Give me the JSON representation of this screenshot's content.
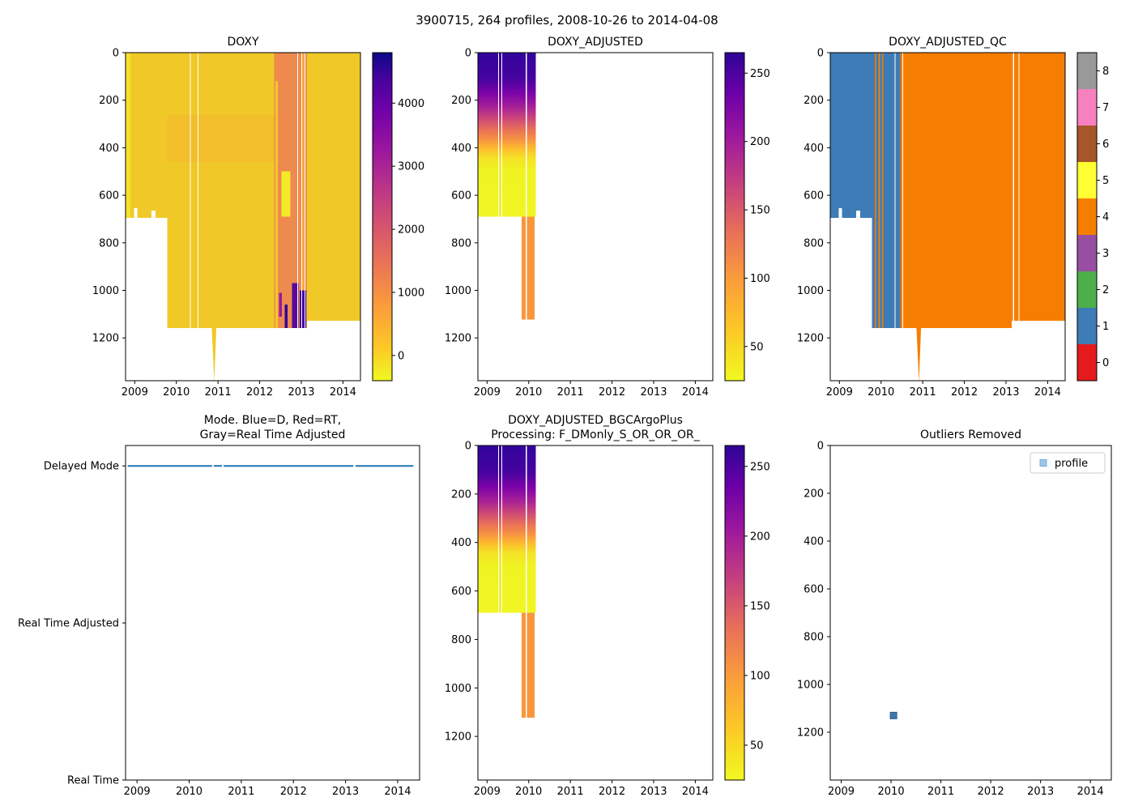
{
  "figure_title": "3900715, 264 profiles, 2008-10-26 to 2014-04-08",
  "colors": {
    "mode_line": "#1f77b4",
    "qc_blue": "#3e7cb8",
    "qc_orange": "#f57e00",
    "heat_gold": "#f0c929"
  },
  "chart_data": [
    {
      "id": "doxy",
      "type": "heatmap",
      "title": "DOXY",
      "x_range": [
        2008.78,
        2014.42
      ],
      "y_range": [
        0,
        1380
      ],
      "x_ticks": [
        2009,
        2010,
        2011,
        2012,
        2013,
        2014
      ],
      "y_ticks": [
        0,
        200,
        400,
        600,
        800,
        1000,
        1200
      ],
      "colorbar": {
        "kind": "gradient",
        "range": [
          -400,
          4800
        ],
        "ticks": [
          0,
          1000,
          2000,
          3000,
          4000
        ],
        "stops": [
          [
            0,
            "#f0f921"
          ],
          [
            0.1,
            "#fdc926"
          ],
          [
            0.22,
            "#fb9f3a"
          ],
          [
            0.34,
            "#ed7953"
          ],
          [
            0.46,
            "#d8576b"
          ],
          [
            0.58,
            "#bd3786"
          ],
          [
            0.7,
            "#9c179e"
          ],
          [
            0.82,
            "#7201a8"
          ],
          [
            0.92,
            "#46039f"
          ],
          [
            1,
            "#0d0887"
          ]
        ]
      },
      "regions": [
        {
          "type": "rect",
          "x": [
            2008.78,
            2009.78
          ],
          "y": [
            0,
            695
          ],
          "color": "#f0c929"
        },
        {
          "type": "rect",
          "x": [
            2008.78,
            2008.9
          ],
          "y": [
            0,
            695
          ],
          "color": "#f3e32b"
        },
        {
          "type": "rect",
          "x": [
            2009.78,
            2013.14
          ],
          "y": [
            0,
            1158
          ],
          "color": "#f0c929"
        },
        {
          "type": "rect",
          "x": [
            2009.78,
            2012.35
          ],
          "y": [
            260,
            460
          ],
          "color": "#f2be2a"
        },
        {
          "type": "rect",
          "x": [
            2013.14,
            2014.42
          ],
          "y": [
            0,
            1128
          ],
          "color": "#f0c929"
        },
        {
          "type": "polygon",
          "points": [
            [
              2010.85,
              1158
            ],
            [
              2010.91,
              1385
            ],
            [
              2010.96,
              1158
            ]
          ],
          "color": "#f0c929"
        },
        {
          "type": "rect",
          "x": [
            2012.35,
            2013.14
          ],
          "y": [
            0,
            1158
          ],
          "color": "#ee8a4d"
        },
        {
          "type": "rect",
          "x": [
            2012.38,
            2012.44
          ],
          "y": [
            120,
            1158
          ],
          "color": "#f0c929"
        },
        {
          "type": "rect",
          "x": [
            2012.52,
            2012.74
          ],
          "y": [
            500,
            690
          ],
          "color": "#f2ea28"
        },
        {
          "type": "rect",
          "x": [
            2012.47,
            2012.53
          ],
          "y": [
            1010,
            1110
          ],
          "color": "#9c179e"
        },
        {
          "type": "rect",
          "x": [
            2012.6,
            2012.67
          ],
          "y": [
            1060,
            1158
          ],
          "color": "#2f049a"
        },
        {
          "type": "rect",
          "x": [
            2012.78,
            2012.93
          ],
          "y": [
            970,
            1158
          ],
          "color": "#56089f"
        },
        {
          "type": "rect",
          "x": [
            2012.96,
            2013.12
          ],
          "y": [
            1000,
            1158
          ],
          "color": "#3a049b"
        },
        {
          "type": "rect",
          "x": [
            2013.02,
            2013.09
          ],
          "y": [
            0,
            1000
          ],
          "color": "#f2a93c"
        },
        {
          "type": "rect",
          "x": [
            2008.98,
            2009.06
          ],
          "y": [
            655,
            695
          ],
          "color": "#ffffff"
        },
        {
          "type": "rect",
          "x": [
            2009.4,
            2009.5
          ],
          "y": [
            665,
            695
          ],
          "color": "#ffffff"
        },
        {
          "type": "rect",
          "x": [
            2010.325,
            2010.345
          ],
          "y": [
            0,
            1158
          ],
          "color": "#ffffff"
        },
        {
          "type": "rect",
          "x": [
            2010.51,
            2010.53
          ],
          "y": [
            0,
            1158
          ],
          "color": "#ffffff"
        },
        {
          "type": "rect",
          "x": [
            2012.9,
            2012.92
          ],
          "y": [
            0,
            1158
          ],
          "color": "#ffffff"
        },
        {
          "type": "rect",
          "x": [
            2013.0,
            2013.02
          ],
          "y": [
            0,
            1158
          ],
          "color": "#ffffff"
        },
        {
          "type": "rect",
          "x": [
            2013.08,
            2013.1
          ],
          "y": [
            0,
            1158
          ],
          "color": "#ffffff"
        }
      ]
    },
    {
      "id": "doxy_adjusted",
      "type": "heatmap",
      "title": "DOXY_ADJUSTED",
      "x_range": [
        2008.78,
        2014.42
      ],
      "y_range": [
        0,
        1380
      ],
      "x_ticks": [
        2009,
        2010,
        2011,
        2012,
        2013,
        2014
      ],
      "y_ticks": [
        0,
        200,
        400,
        600,
        800,
        1000,
        1200
      ],
      "colorbar": {
        "kind": "gradient",
        "range": [
          25,
          265
        ],
        "ticks": [
          50,
          100,
          150,
          200,
          250
        ],
        "stops": [
          [
            0,
            "#f0f921"
          ],
          [
            0.15,
            "#fdc926"
          ],
          [
            0.3,
            "#fb9f3a"
          ],
          [
            0.45,
            "#e97158"
          ],
          [
            0.6,
            "#c5407e"
          ],
          [
            0.75,
            "#9c179e"
          ],
          [
            0.88,
            "#6a00a8"
          ],
          [
            1,
            "#2d0594"
          ]
        ]
      },
      "regions": [
        {
          "type": "vgradient",
          "x": [
            2008.78,
            2010.17
          ],
          "y": [
            0,
            690
          ],
          "stops": [
            [
              0,
              "#31049c"
            ],
            [
              0.16,
              "#46039f"
            ],
            [
              0.25,
              "#7e03a8"
            ],
            [
              0.33,
              "#a62098"
            ],
            [
              0.4,
              "#cc4778"
            ],
            [
              0.47,
              "#e97158"
            ],
            [
              0.53,
              "#f79342"
            ],
            [
              0.58,
              "#fdb92e"
            ],
            [
              0.64,
              "#f4e126"
            ],
            [
              0.72,
              "#f0f322"
            ],
            [
              1,
              "#f0f524"
            ]
          ]
        },
        {
          "type": "rect",
          "x": [
            2009.83,
            2009.925
          ],
          "y": [
            690,
            1122
          ],
          "color": "#f9963c"
        },
        {
          "type": "rect",
          "x": [
            2009.955,
            2010.14
          ],
          "y": [
            690,
            1122
          ],
          "color": "#f9963c"
        },
        {
          "type": "rect",
          "x": [
            2009.925,
            2009.955
          ],
          "y": [
            0,
            1122
          ],
          "color": "#ffffff"
        },
        {
          "type": "rect",
          "x": [
            2009.27,
            2009.29
          ],
          "y": [
            0,
            690
          ],
          "color": "#ffffff"
        },
        {
          "type": "rect",
          "x": [
            2009.34,
            2009.36
          ],
          "y": [
            0,
            690
          ],
          "color": "#ffffff"
        }
      ]
    },
    {
      "id": "doxy_adjusted_qc",
      "type": "heatmap",
      "title": "DOXY_ADJUSTED_QC",
      "x_range": [
        2008.78,
        2014.42
      ],
      "y_range": [
        0,
        1380
      ],
      "x_ticks": [
        2009,
        2010,
        2011,
        2012,
        2013,
        2014
      ],
      "y_ticks": [
        0,
        200,
        400,
        600,
        800,
        1000,
        1200
      ],
      "colorbar": {
        "kind": "discrete",
        "colors": [
          "#e41a1c",
          "#3e7cb8",
          "#4daf4a",
          "#984ea3",
          "#f57e00",
          "#ffff33",
          "#a65628",
          "#f781bf",
          "#999999"
        ],
        "ticks": [
          0,
          1,
          2,
          3,
          4,
          5,
          6,
          7,
          8
        ]
      },
      "regions": [
        {
          "type": "rect",
          "x": [
            2008.78,
            2009.78
          ],
          "y": [
            0,
            695
          ],
          "color": "#3e7cb8"
        },
        {
          "type": "rect",
          "x": [
            2009.78,
            2010.46
          ],
          "y": [
            0,
            1158
          ],
          "color": "#3e7cb8"
        },
        {
          "type": "rect",
          "x": [
            2009.845,
            2009.875
          ],
          "y": [
            0,
            1158
          ],
          "color": "#f57e00"
        },
        {
          "type": "rect",
          "x": [
            2009.94,
            2009.975
          ],
          "y": [
            0,
            1158
          ],
          "color": "#f57e00"
        },
        {
          "type": "rect",
          "x": [
            2010.02,
            2010.05
          ],
          "y": [
            0,
            1158
          ],
          "color": "#f57e00"
        },
        {
          "type": "rect",
          "x": [
            2010.46,
            2013.14
          ],
          "y": [
            0,
            1158
          ],
          "color": "#f57e00"
        },
        {
          "type": "rect",
          "x": [
            2013.14,
            2014.42
          ],
          "y": [
            0,
            1128
          ],
          "color": "#f57e00"
        },
        {
          "type": "polygon",
          "points": [
            [
              2010.85,
              1158
            ],
            [
              2010.91,
              1385
            ],
            [
              2010.96,
              1158
            ]
          ],
          "color": "#f57e00"
        },
        {
          "type": "rect",
          "x": [
            2008.98,
            2009.06
          ],
          "y": [
            655,
            695
          ],
          "color": "#ffffff"
        },
        {
          "type": "rect",
          "x": [
            2009.4,
            2009.5
          ],
          "y": [
            665,
            695
          ],
          "color": "#ffffff"
        },
        {
          "type": "rect",
          "x": [
            2010.325,
            2010.345
          ],
          "y": [
            0,
            1158
          ],
          "color": "#ffffff"
        },
        {
          "type": "rect",
          "x": [
            2010.51,
            2010.53
          ],
          "y": [
            0,
            1158
          ],
          "color": "#ffffff"
        },
        {
          "type": "rect",
          "x": [
            2013.17,
            2013.19
          ],
          "y": [
            0,
            1128
          ],
          "color": "#ffffff"
        },
        {
          "type": "rect",
          "x": [
            2013.3,
            2013.32
          ],
          "y": [
            0,
            1128
          ],
          "color": "#ffffff"
        }
      ]
    },
    {
      "id": "mode",
      "type": "line",
      "title": "Mode. Blue=D, Red=RT,\nGray=Real Time Adjusted",
      "x_range": [
        2008.78,
        2014.42
      ],
      "y_range": [
        2.13,
        0
      ],
      "x_ticks": [
        2009,
        2010,
        2011,
        2012,
        2013,
        2014
      ],
      "y_ticks": [
        2,
        1,
        0
      ],
      "y_tick_labels": [
        "Delayed Mode",
        "Real Time Adjusted",
        "Real Time"
      ],
      "lines": [
        {
          "color": "#1f77b4",
          "width": 2,
          "segments": [
            [
              [
                2008.82,
                2
              ],
              [
                2010.44,
                2
              ]
            ],
            [
              [
                2010.47,
                2
              ],
              [
                2010.63,
                2
              ]
            ],
            [
              [
                2010.66,
                2
              ],
              [
                2013.15,
                2
              ]
            ],
            [
              [
                2013.19,
                2
              ],
              [
                2014.3,
                2
              ]
            ]
          ]
        }
      ]
    },
    {
      "id": "doxy_adjusted_bgc",
      "type": "heatmap",
      "title": "DOXY_ADJUSTED_BGCArgoPlus\nProcessing: F_DMonly_S_OR_OR_OR_",
      "x_range": [
        2008.78,
        2014.42
      ],
      "y_range": [
        0,
        1380
      ],
      "x_ticks": [
        2009,
        2010,
        2011,
        2012,
        2013,
        2014
      ],
      "y_ticks": [
        0,
        200,
        400,
        600,
        800,
        1000,
        1200
      ],
      "colorbar": {
        "kind": "gradient",
        "range": [
          25,
          265
        ],
        "ticks": [
          50,
          100,
          150,
          200,
          250
        ],
        "stops": [
          [
            0,
            "#f0f921"
          ],
          [
            0.15,
            "#fdc926"
          ],
          [
            0.3,
            "#fb9f3a"
          ],
          [
            0.45,
            "#e97158"
          ],
          [
            0.6,
            "#c5407e"
          ],
          [
            0.75,
            "#9c179e"
          ],
          [
            0.88,
            "#6a00a8"
          ],
          [
            1,
            "#2d0594"
          ]
        ]
      },
      "regions": [
        {
          "type": "vgradient",
          "x": [
            2008.78,
            2010.17
          ],
          "y": [
            0,
            690
          ],
          "stops": [
            [
              0,
              "#31049c"
            ],
            [
              0.16,
              "#46039f"
            ],
            [
              0.25,
              "#7e03a8"
            ],
            [
              0.33,
              "#a62098"
            ],
            [
              0.4,
              "#cc4778"
            ],
            [
              0.47,
              "#e97158"
            ],
            [
              0.53,
              "#f79342"
            ],
            [
              0.58,
              "#fdb92e"
            ],
            [
              0.64,
              "#f4e126"
            ],
            [
              0.72,
              "#f0f322"
            ],
            [
              1,
              "#f0f524"
            ]
          ]
        },
        {
          "type": "rect",
          "x": [
            2009.83,
            2009.925
          ],
          "y": [
            690,
            1122
          ],
          "color": "#f9963c"
        },
        {
          "type": "rect",
          "x": [
            2009.955,
            2010.14
          ],
          "y": [
            690,
            1122
          ],
          "color": "#f9963c"
        },
        {
          "type": "rect",
          "x": [
            2009.925,
            2009.955
          ],
          "y": [
            0,
            1122
          ],
          "color": "#ffffff"
        },
        {
          "type": "rect",
          "x": [
            2009.27,
            2009.29
          ],
          "y": [
            0,
            690
          ],
          "color": "#ffffff"
        },
        {
          "type": "rect",
          "x": [
            2009.34,
            2009.36
          ],
          "y": [
            0,
            690
          ],
          "color": "#ffffff"
        }
      ]
    },
    {
      "id": "outliers",
      "type": "scatter",
      "title": "Outliers Removed",
      "x_range": [
        2008.78,
        2014.42
      ],
      "y_range": [
        0,
        1400
      ],
      "x_ticks": [
        2009,
        2010,
        2011,
        2012,
        2013,
        2014
      ],
      "y_ticks": [
        0,
        200,
        400,
        600,
        800,
        1000,
        1200
      ],
      "points": [
        {
          "x": 2010.05,
          "y": 1130,
          "color": "#3f76ae",
          "edge": "#2a5a8c",
          "size": 8,
          "shape": "square"
        }
      ],
      "legend": {
        "label": "profile",
        "marker_color": "#9fc5e8",
        "marker_edge": "#6baed6"
      }
    }
  ]
}
